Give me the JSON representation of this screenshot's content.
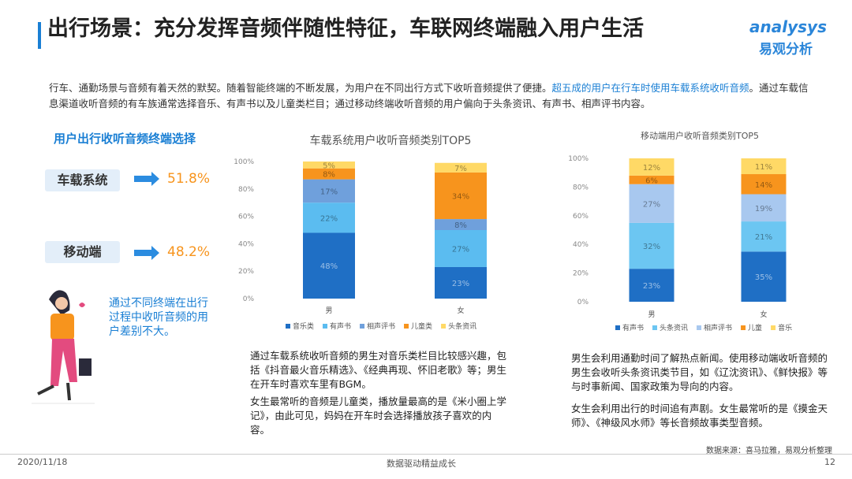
{
  "title": "出行场景：充分发挥音频伴随性特征，车联网终端融入用户生活",
  "logo": {
    "brand": "analysys",
    "name": "易观分析"
  },
  "intro": [
    "行车、通勤场景与音频有着天然的默契。随着智能终端的不断发展，为用户在不同出行方式下收听音频提供了便捷。",
    "超五成的用户在行车时使用车载系统收听音频",
    "。通过车载信息渠道收听音频的有车族通常选择音乐、有声书以及儿童类栏目；通过移动终端收听音频的用户偏向于头条资讯、有声书、相声评书内容。"
  ],
  "terminal": {
    "heading": "用户出行收听音频终端选择",
    "items": [
      {
        "label": "车载系统",
        "share": "51.8%"
      },
      {
        "label": "移动端",
        "share": "48.2%"
      }
    ],
    "note": "通过不同终端在出行过程中收听音频的用户差别不大。"
  },
  "notes": [
    [
      "通过车载系统收听音频的男生对音乐类栏目比较感兴趣，包括《抖音最火音乐精选》、《经典再现、怀旧老歌》等；男生在开车时喜欢车里有BGM。",
      "女生最常听的音频是儿童类，播放量最高的是《米小圈上学记》，由此可见，妈妈在开车时会选择播放孩子喜欢的内容。"
    ],
    [
      "男生会利用通勤时间了解热点新闻。使用移动端收听音频的男生会收听头条资讯类节目，如《辽沈资讯》、《鲜快报》等与时事新闻、国家政策为导向的内容。",
      "女生会利用出行的时间追有声剧。女生最常听的是《摸金天师》、《神级风水师》等长音频故事类型音频。"
    ]
  ],
  "source": "数据来源：喜马拉雅，易观分析整理",
  "footer": {
    "date": "2020/11/18",
    "slogan": "数据驱动精益成长",
    "page": "12"
  },
  "chart_data": [
    {
      "type": "stacked_bar",
      "title": "车载系统用户收听音频类别TOP5",
      "categories": [
        "男",
        "女"
      ],
      "ylim": [
        0,
        100
      ],
      "yticks": [
        {
          "value": 0,
          "label": "0%"
        },
        {
          "value": 20,
          "label": "20%"
        },
        {
          "value": 40,
          "label": "40%"
        },
        {
          "value": 60,
          "label": "60%"
        },
        {
          "value": 80,
          "label": "80%"
        },
        {
          "value": 100,
          "label": "100%"
        }
      ],
      "series": [
        {
          "name": "音乐类",
          "color": "#1f6fc5",
          "values": [
            48,
            23
          ],
          "value_labels": [
            "48%",
            "23%"
          ]
        },
        {
          "name": "有声书",
          "color": "#5bbcf0",
          "values": [
            22,
            27
          ],
          "value_labels": [
            "22%",
            "27%"
          ]
        },
        {
          "name": "相声评书",
          "color": "#6fa0dc",
          "values": [
            17,
            8
          ],
          "value_labels": [
            "17%",
            "8%"
          ]
        },
        {
          "name": "儿童类",
          "color": "#f7941d",
          "values": [
            8,
            34
          ],
          "value_labels": [
            "8%",
            "34%"
          ]
        },
        {
          "name": "头条资讯",
          "color": "#ffd966",
          "values": [
            5,
            7
          ],
          "value_labels": [
            "5%",
            "7%"
          ]
        }
      ]
    },
    {
      "type": "stacked_bar",
      "title": "移动端用户收听音频类别TOP5",
      "categories": [
        "男",
        "女"
      ],
      "ylim": [
        0,
        100
      ],
      "yticks": [
        {
          "value": 0,
          "label": "0%"
        },
        {
          "value": 20,
          "label": "20%"
        },
        {
          "value": 40,
          "label": "40%"
        },
        {
          "value": 60,
          "label": "60%"
        },
        {
          "value": 80,
          "label": "80%"
        },
        {
          "value": 100,
          "label": "100%"
        }
      ],
      "series": [
        {
          "name": "有声书",
          "color": "#1f6fc5",
          "values": [
            23,
            35
          ],
          "value_labels": [
            "23%",
            "35%"
          ]
        },
        {
          "name": "头条资讯",
          "color": "#6cc6f2",
          "values": [
            32,
            21
          ],
          "value_labels": [
            "32%",
            "21%"
          ]
        },
        {
          "name": "相声评书",
          "color": "#a8c8ef",
          "values": [
            27,
            19
          ],
          "value_labels": [
            "27%",
            "19%"
          ]
        },
        {
          "name": "儿童",
          "color": "#f7941d",
          "values": [
            6,
            14
          ],
          "value_labels": [
            "6%",
            "14%"
          ]
        },
        {
          "name": "音乐",
          "color": "#ffd966",
          "values": [
            12,
            11
          ],
          "value_labels": [
            "12%",
            "11%"
          ]
        }
      ]
    }
  ]
}
